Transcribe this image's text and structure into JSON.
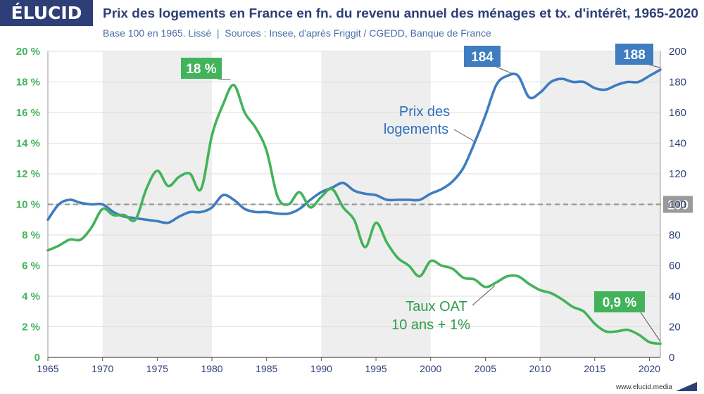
{
  "header": {
    "brand": "ÉLUCID",
    "title": "Prix des logements en France en fn. du revenu annuel des ménages et tx. d'intérêt, 1965-2020",
    "subtitle": "Base 100 en 1965. Lissé  |  Sources : Insee, d'après Friggit / CGEDD, Banque de France"
  },
  "footer": {
    "url": "www.elucid.media"
  },
  "colors": {
    "brand_bg": "#2e3f77",
    "housing": "#3f7cc0",
    "housing_label": "#2f6fba",
    "oat": "#42b35a",
    "oat_label": "#2f9c4a",
    "reference": "#9a9a9a",
    "band": "#eeeeee",
    "grid": "#dddddd"
  },
  "chart_data": {
    "type": "line",
    "title": "Prix des logements en France en fn. du revenu annuel des ménages et tx. d'intérêt, 1965-2020",
    "subtitle": "Base 100 en 1965. Lissé",
    "xlim": [
      1965,
      2021
    ],
    "x_ticks": [
      "1965",
      "1970",
      "1975",
      "1980",
      "1985",
      "1990",
      "1995",
      "2000",
      "2005",
      "2010",
      "2015",
      "2020"
    ],
    "left_axis": {
      "ylim": [
        0,
        20
      ],
      "ticks": [
        0,
        2,
        4,
        6,
        8,
        10,
        12,
        14,
        16,
        18,
        20
      ],
      "tick_labels": [
        "0",
        "2 %",
        "4 %",
        "6 %",
        "8 %",
        "10 %",
        "12 %",
        "14 %",
        "16 %",
        "18 %",
        "20 %"
      ]
    },
    "right_axis": {
      "ylim": [
        0,
        200
      ],
      "ticks": [
        0,
        20,
        40,
        60,
        80,
        100,
        120,
        140,
        160,
        180,
        200
      ],
      "tick_labels": [
        "0",
        "20",
        "40",
        "60",
        "80",
        "100",
        "120",
        "140",
        "160",
        "180",
        "200"
      ]
    },
    "grid": true,
    "shaded_decades": [
      [
        1970,
        1980
      ],
      [
        1990,
        2000
      ],
      [
        2010,
        2021
      ]
    ],
    "reference_line": {
      "axis": "right",
      "value": 100,
      "label": "100"
    },
    "series": [
      {
        "name": "Prix des logements",
        "axis": "right",
        "points": [
          [
            1965,
            90
          ],
          [
            1966,
            100
          ],
          [
            1967,
            103
          ],
          [
            1968,
            101
          ],
          [
            1969,
            100
          ],
          [
            1970,
            100
          ],
          [
            1971,
            95
          ],
          [
            1972,
            92
          ],
          [
            1973,
            91
          ],
          [
            1974,
            90
          ],
          [
            1975,
            89
          ],
          [
            1976,
            88
          ],
          [
            1977,
            92
          ],
          [
            1978,
            95
          ],
          [
            1979,
            95
          ],
          [
            1980,
            98
          ],
          [
            1981,
            106
          ],
          [
            1982,
            103
          ],
          [
            1983,
            97
          ],
          [
            1984,
            95
          ],
          [
            1985,
            95
          ],
          [
            1986,
            94
          ],
          [
            1987,
            94
          ],
          [
            1988,
            97
          ],
          [
            1989,
            103
          ],
          [
            1990,
            108
          ],
          [
            1991,
            111
          ],
          [
            1992,
            114
          ],
          [
            1993,
            109
          ],
          [
            1994,
            107
          ],
          [
            1995,
            106
          ],
          [
            1996,
            103
          ],
          [
            1997,
            103
          ],
          [
            1998,
            103
          ],
          [
            1999,
            103
          ],
          [
            2000,
            107
          ],
          [
            2001,
            110
          ],
          [
            2002,
            115
          ],
          [
            2003,
            124
          ],
          [
            2004,
            140
          ],
          [
            2005,
            158
          ],
          [
            2006,
            178
          ],
          [
            2007,
            184
          ],
          [
            2008,
            184
          ],
          [
            2009,
            170
          ],
          [
            2010,
            173
          ],
          [
            2011,
            180
          ],
          [
            2012,
            182
          ],
          [
            2013,
            180
          ],
          [
            2014,
            180
          ],
          [
            2015,
            176
          ],
          [
            2016,
            175
          ],
          [
            2017,
            178
          ],
          [
            2018,
            180
          ],
          [
            2019,
            180
          ],
          [
            2020,
            184
          ],
          [
            2021,
            188
          ]
        ],
        "callouts": [
          {
            "x": 2007.5,
            "y": 184,
            "label": "184"
          },
          {
            "x": 2021,
            "y": 188,
            "label": "188"
          }
        ]
      },
      {
        "name": "Taux OAT 10 ans + 1%",
        "axis": "left",
        "points": [
          [
            1965,
            7.0
          ],
          [
            1966,
            7.3
          ],
          [
            1967,
            7.7
          ],
          [
            1968,
            7.7
          ],
          [
            1969,
            8.5
          ],
          [
            1970,
            9.7
          ],
          [
            1971,
            9.3
          ],
          [
            1972,
            9.3
          ],
          [
            1973,
            9.0
          ],
          [
            1974,
            11.0
          ],
          [
            1975,
            12.2
          ],
          [
            1976,
            11.2
          ],
          [
            1977,
            11.8
          ],
          [
            1978,
            12.0
          ],
          [
            1979,
            11.0
          ],
          [
            1980,
            14.5
          ],
          [
            1981,
            16.5
          ],
          [
            1982,
            17.8
          ],
          [
            1983,
            16.0
          ],
          [
            1984,
            15.0
          ],
          [
            1985,
            13.5
          ],
          [
            1986,
            10.5
          ],
          [
            1987,
            10.0
          ],
          [
            1988,
            10.8
          ],
          [
            1989,
            9.8
          ],
          [
            1990,
            10.5
          ],
          [
            1991,
            11.0
          ],
          [
            1992,
            9.8
          ],
          [
            1993,
            9.0
          ],
          [
            1994,
            7.2
          ],
          [
            1995,
            8.8
          ],
          [
            1996,
            7.5
          ],
          [
            1997,
            6.5
          ],
          [
            1998,
            6.0
          ],
          [
            1999,
            5.3
          ],
          [
            2000,
            6.3
          ],
          [
            2001,
            6.0
          ],
          [
            2002,
            5.8
          ],
          [
            2003,
            5.2
          ],
          [
            2004,
            5.1
          ],
          [
            2005,
            4.6
          ],
          [
            2006,
            4.9
          ],
          [
            2007,
            5.3
          ],
          [
            2008,
            5.3
          ],
          [
            2009,
            4.8
          ],
          [
            2010,
            4.4
          ],
          [
            2011,
            4.2
          ],
          [
            2012,
            3.8
          ],
          [
            2013,
            3.3
          ],
          [
            2014,
            3.0
          ],
          [
            2015,
            2.2
          ],
          [
            2016,
            1.7
          ],
          [
            2017,
            1.7
          ],
          [
            2018,
            1.8
          ],
          [
            2019,
            1.5
          ],
          [
            2020,
            1.0
          ],
          [
            2021,
            0.9
          ]
        ],
        "callouts": [
          {
            "x": 1981.7,
            "y": 18,
            "label": "18 %"
          },
          {
            "x": 2021,
            "y": 0.9,
            "label": "0,9 %"
          }
        ]
      }
    ],
    "annotations": [
      {
        "series": "Prix des logements",
        "lines": [
          "Prix des",
          "logements"
        ]
      },
      {
        "series": "Taux OAT 10 ans + 1%",
        "lines": [
          "Taux OAT",
          "10 ans + 1%"
        ]
      }
    ]
  }
}
